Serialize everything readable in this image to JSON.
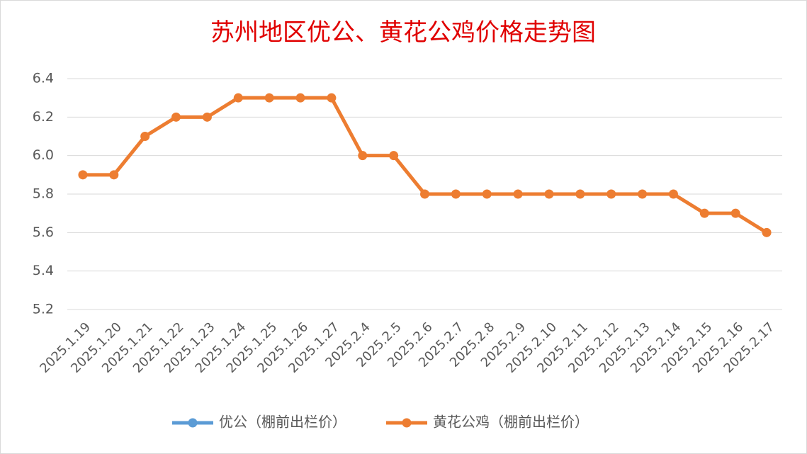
{
  "chart_data": {
    "type": "line",
    "title": "苏州地区优公、黄花公鸡价格走势图",
    "categories": [
      "2025.1.19",
      "2025.1.20",
      "2025.1.21",
      "2025.1.22",
      "2025.1.23",
      "2025.1.24",
      "2025.1.25",
      "2025.1.26",
      "2025.1.27",
      "2025.2.4",
      "2025.2.5",
      "2025.2.6",
      "2025.2.7",
      "2025.2.8",
      "2025.2.9",
      "2025.2.10",
      "2025.2.11",
      "2025.2.12",
      "2025.2.13",
      "2025.2.14",
      "2025.2.15",
      "2025.2.16",
      "2025.2.17"
    ],
    "series": [
      {
        "name": "优公（棚前出栏价）",
        "color": "#5b9bd5",
        "values": [
          null,
          null,
          null,
          null,
          null,
          null,
          null,
          null,
          null,
          null,
          null,
          null,
          null,
          null,
          null,
          null,
          null,
          null,
          null,
          null,
          null,
          null,
          null
        ]
      },
      {
        "name": "黄花公鸡（棚前出栏价）",
        "color": "#ed7d31",
        "values": [
          5.9,
          5.9,
          6.1,
          6.2,
          6.2,
          6.3,
          6.3,
          6.3,
          6.3,
          6.0,
          6.0,
          5.8,
          5.8,
          5.8,
          5.8,
          5.8,
          5.8,
          5.8,
          5.8,
          5.8,
          5.7,
          5.7,
          5.6
        ]
      }
    ],
    "ylim": [
      5.2,
      6.4
    ],
    "yticks": [
      5.2,
      5.4,
      5.6,
      5.8,
      {
        "value": 6,
        "label": "6.0"
      },
      6.2,
      6.4
    ],
    "grid": true,
    "legend": "bottom"
  }
}
